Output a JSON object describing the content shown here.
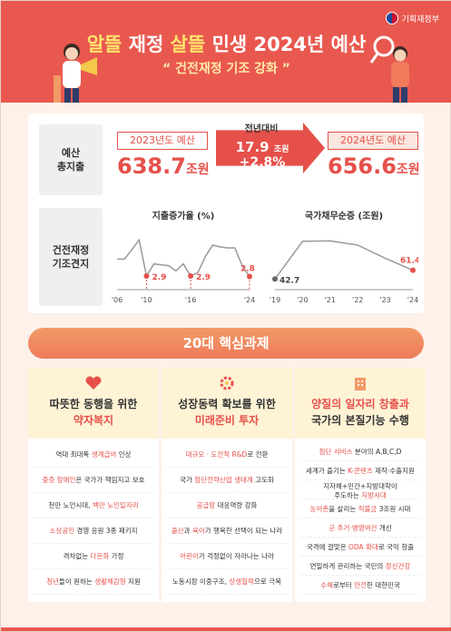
{
  "header": {
    "ministry": "기획재정부",
    "title_parts": [
      "알뜰",
      " 재정 ",
      "살뜰",
      " 민생 2024년 예산"
    ],
    "subtitle": "“ 건전재정 기조 강화 ”"
  },
  "budget": {
    "label": "예산\n총지출",
    "y2023_label": "2023년도 예산",
    "y2023_value": "638.7",
    "y2024_label": "2024년도 예산",
    "y2024_value": "656.6",
    "unit": "조원",
    "change_title": "전년대비",
    "change_amount": "17.9",
    "change_unit": "조원",
    "change_pct": "+2.8%"
  },
  "fiscal": {
    "label": "건전재정\n기조견지",
    "charts": [
      {
        "title": "지출증가율 (%)",
        "x_ticks": [
          "'06",
          "'10",
          "'16",
          "'24"
        ],
        "labels": [
          "2.9",
          "2.9",
          "2.8"
        ]
      },
      {
        "title": "국가채무순증 (조원)",
        "x_ticks": [
          "'19",
          "'20",
          "'21",
          "'22",
          "'23",
          "'24"
        ],
        "labels": [
          "42.7",
          "61.4"
        ]
      }
    ]
  },
  "chart_data": [
    {
      "type": "line",
      "title": "지출증가율 (%)",
      "x": [
        "'06",
        "'07",
        "'08",
        "'09",
        "'10",
        "'11",
        "'12",
        "'13",
        "'14",
        "'15",
        "'16",
        "'17",
        "'18",
        "'19",
        "'20",
        "'21",
        "'22",
        "'23",
        "'24"
      ],
      "values": [
        6.5,
        6.5,
        8.5,
        10.6,
        2.9,
        5.5,
        5.3,
        5.1,
        4.0,
        5.5,
        2.9,
        3.7,
        7.1,
        9.5,
        9.1,
        8.9,
        8.9,
        5.1,
        2.8
      ],
      "labeled_points": {
        "'10": 2.9,
        "'16": 2.9,
        "'24": 2.8
      }
    },
    {
      "type": "line",
      "title": "국가채무순증 (조원)",
      "x": [
        "'19",
        "'20",
        "'21",
        "'22",
        "'23",
        "'24"
      ],
      "values": [
        42.7,
        123,
        124,
        115,
        87,
        61.4
      ],
      "labeled_points": {
        "'19": 42.7,
        "'24": 61.4
      }
    }
  ],
  "tasks": {
    "banner": "20대 핵심과제",
    "columns": [
      {
        "icon": "heart-hands-icon",
        "title1": "따뜻한 동행을 위한",
        "title2": "약자복지",
        "items": [
          [
            "역대 최대폭 ",
            "생계급여",
            " 인상"
          ],
          [
            "",
            "중증 장애인",
            "은 국가가 책임지고 보호"
          ],
          [
            "천만 노인시대, ",
            "백만 노인일자리",
            ""
          ],
          [
            "",
            "소상공인",
            " 경영 응원 3종 패키지"
          ],
          [
            "격차없는 ",
            "다문화",
            " 가정"
          ],
          [
            "",
            "청년",
            "들이 원하는 ",
            "생활체감형",
            " 지원"
          ]
        ]
      },
      {
        "icon": "gear-growth-icon",
        "title1": "성장동력 확보를 위한",
        "title2": "미래준비 투자",
        "items": [
          [
            "",
            "대규모 · 도전적 R&D",
            "로 전환"
          ],
          [
            "국가 ",
            "첨단전략산업 생태계",
            " 고도화"
          ],
          [
            "",
            "공급망",
            " 대응역량 강화"
          ],
          [
            "",
            "출산",
            "과 ",
            "육아",
            "가 행복한 선택이 되는 나라"
          ],
          [
            "",
            "어린이",
            "가 걱정없이 자라나는 나라"
          ],
          [
            "노동시장 이중구조, ",
            "상생협력",
            "으로 극복"
          ]
        ]
      },
      {
        "icon": "building-icon",
        "title1": "양질의 일자리 창출과",
        "title2": "국가의 본질기능 수행",
        "items": [
          [
            "",
            "첨단 서비스",
            " 분야의 A,B,C,D"
          ],
          [
            "세계가 즐기는 ",
            "K-콘텐츠",
            " 제작·수출지원"
          ],
          [
            "지자체+민간+지방대학이\n주도하는 ",
            "지방시대",
            ""
          ],
          [
            "",
            "농어촌",
            "을 살리는 ",
            "직불금",
            " 3조원 시대"
          ],
          [
            "",
            "군 주거·병영여건",
            " 개선"
          ],
          [
            "국격에 걸맞은 ",
            "ODA 확대",
            "로 국익 창출"
          ],
          [
            "",
            "",
            "면밀하게 관리하는 국민의 ",
            "정신건강",
            ""
          ],
          [
            "",
            "수해",
            "로부터 ",
            "안전",
            "한 대한민국"
          ]
        ]
      }
    ]
  },
  "colors": {
    "accent": "#e6504a",
    "header": "#e9584f",
    "banner": "#ee7b5b",
    "cream": "#fff3d6"
  }
}
